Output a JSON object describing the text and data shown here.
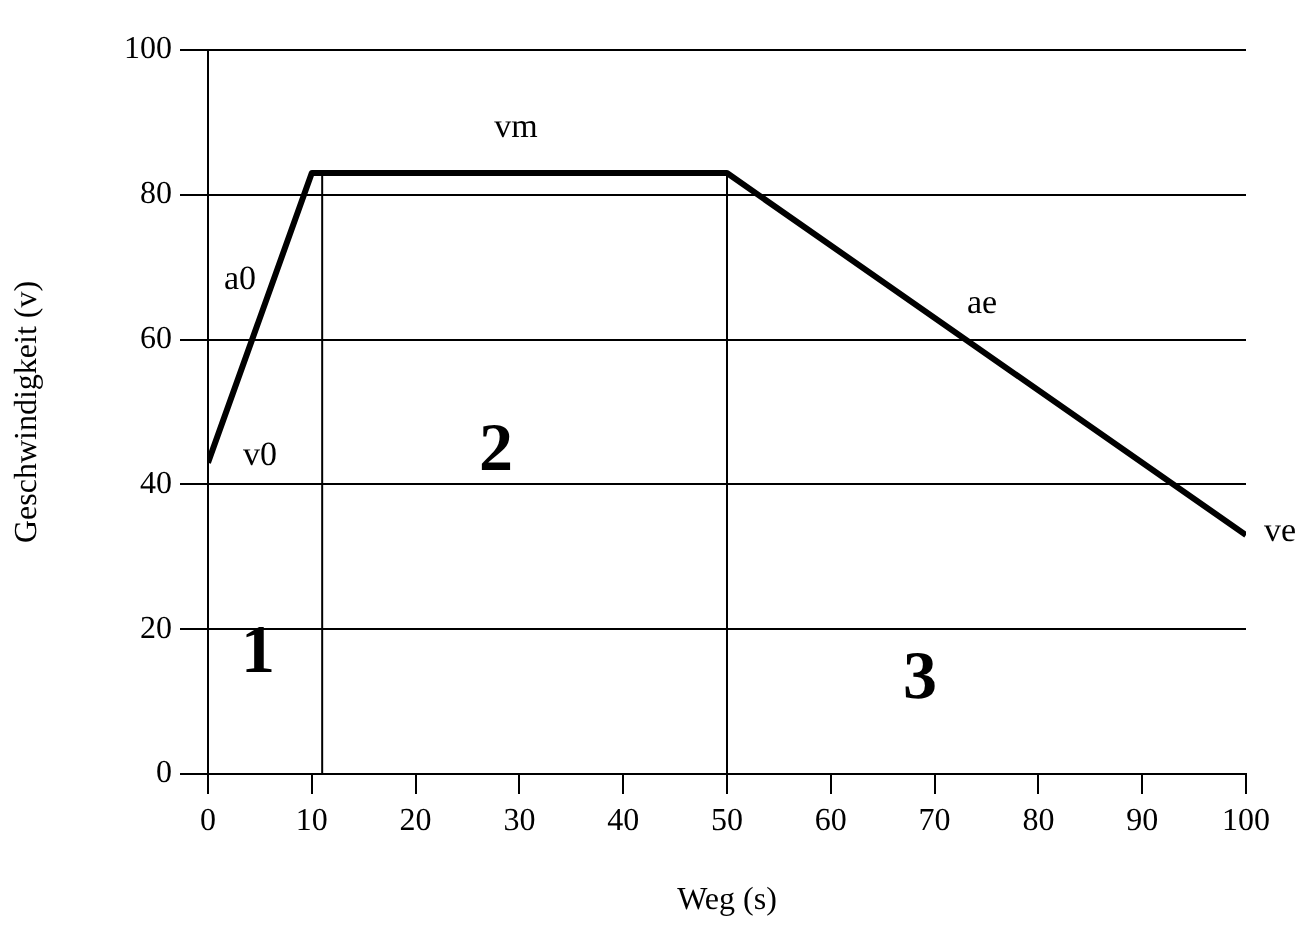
{
  "chart_data": {
    "type": "line",
    "xlabel": "Weg (s)",
    "ylabel": "Geschwindigkeit (v)",
    "x": [
      0,
      10,
      50,
      100
    ],
    "series": [
      {
        "color": "#000000",
        "values": [
          43,
          83,
          83,
          33
        ]
      }
    ],
    "xlim": [
      0,
      100
    ],
    "ylim": [
      0,
      100
    ],
    "xticks": [
      0,
      10,
      20,
      30,
      40,
      50,
      60,
      70,
      80,
      90,
      100
    ],
    "yticks": [
      0,
      20,
      40,
      60,
      80,
      100
    ],
    "grid": "y",
    "legend": false,
    "marker": "none",
    "line_style": "solid",
    "ref_lines": [
      {
        "axis": "x",
        "value": 11,
        "color": "#000000"
      },
      {
        "axis": "x",
        "value": 50,
        "color": "#000000"
      }
    ],
    "annotations": [
      "a0",
      "v0",
      "vm",
      "ae",
      "ve",
      "1",
      "2",
      "3"
    ]
  }
}
